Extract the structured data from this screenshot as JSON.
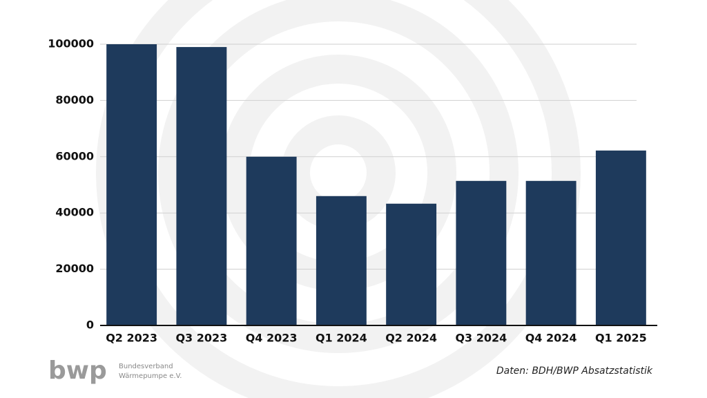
{
  "chart_data": {
    "type": "bar",
    "categories": [
      "Q2 2023",
      "Q3 2023",
      "Q4 2023",
      "Q1 2024",
      "Q2 2024",
      "Q3 2024",
      "Q4 2024",
      "Q1 2025"
    ],
    "values": [
      100000,
      99000,
      60000,
      46000,
      43300,
      51400,
      51400,
      62200
    ],
    "color": "#1e3a5c",
    "ylim": [
      0,
      100000
    ],
    "yticks": [
      0,
      20000,
      40000,
      60000,
      80000,
      100000
    ],
    "grid": true,
    "source": "Daten: BDH/BWP Absatzstatistik"
  },
  "logo": {
    "mark": "bwp",
    "line1": "Bundesverband",
    "line2": "Wärmepumpe e.V."
  }
}
